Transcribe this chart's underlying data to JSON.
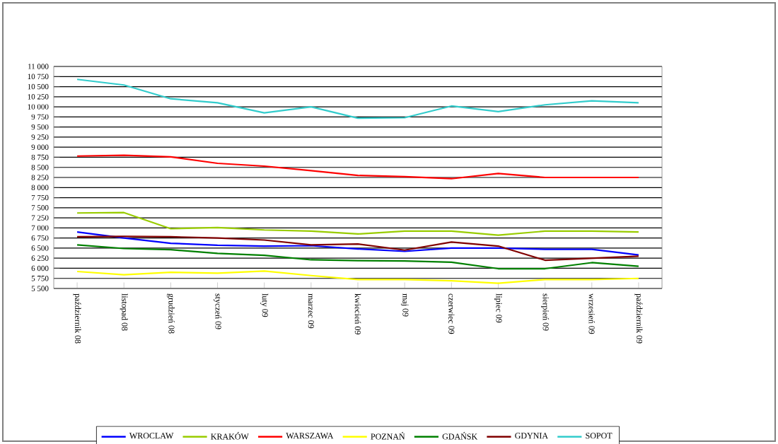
{
  "chart_data": {
    "type": "line",
    "categories": [
      "październik 08",
      "listopad 08",
      "grudzień 08",
      "styczeń 09",
      "luty 09",
      "marzec 09",
      "kwiecień 09",
      "maj 09",
      "czerwiec 09",
      "lipiec 09",
      "sierpień 09",
      "wrzesień 09",
      "październik 09"
    ],
    "series": [
      {
        "name": "WROCLAW",
        "color": "#0000ff",
        "values": [
          6900,
          6750,
          6620,
          6570,
          6550,
          6560,
          6480,
          6420,
          6500,
          6500,
          6470,
          6470,
          6330
        ]
      },
      {
        "name": "KRAKÓW",
        "color": "#99cc00",
        "values": [
          7370,
          7380,
          6980,
          7010,
          6950,
          6920,
          6850,
          6920,
          6920,
          6820,
          6920,
          6920,
          6900
        ]
      },
      {
        "name": "WARSZAWA",
        "color": "#ff0000",
        "values": [
          8780,
          8800,
          8760,
          8600,
          8530,
          8420,
          8300,
          8270,
          8220,
          8350,
          8250,
          8250,
          8250
        ]
      },
      {
        "name": "POZNAŃ",
        "color": "#ffff00",
        "values": [
          5920,
          5840,
          5900,
          5880,
          5930,
          5820,
          5720,
          5720,
          5690,
          5630,
          5720,
          5720,
          5750
        ]
      },
      {
        "name": "GDAŃSK",
        "color": "#008000",
        "values": [
          6580,
          6490,
          6460,
          6370,
          6320,
          6210,
          6190,
          6180,
          6150,
          5990,
          5990,
          6140,
          6050
        ]
      },
      {
        "name": "GDYNIA",
        "color": "#800000",
        "values": [
          6780,
          6790,
          6780,
          6750,
          6700,
          6580,
          6600,
          6450,
          6650,
          6550,
          6200,
          6250,
          6300
        ]
      },
      {
        "name": "SOPOT",
        "color": "#33cccc",
        "values": [
          10680,
          10540,
          10200,
          10100,
          9850,
          10000,
          9720,
          9730,
          10020,
          9880,
          10050,
          10150,
          10100
        ]
      }
    ],
    "ylim": [
      5500,
      11000
    ],
    "yticks": [
      {
        "value": 5500,
        "label": "5 500"
      },
      {
        "value": 5750,
        "label": "5 750"
      },
      {
        "value": 6000,
        "label": "6 000"
      },
      {
        "value": 6250,
        "label": "6 250"
      },
      {
        "value": 6500,
        "label": "6 500"
      },
      {
        "value": 6750,
        "label": "6 750"
      },
      {
        "value": 7000,
        "label": "7 000"
      },
      {
        "value": 7250,
        "label": "7 250"
      },
      {
        "value": 7500,
        "label": "7 500"
      },
      {
        "value": 7750,
        "label": "7 750"
      },
      {
        "value": 8000,
        "label": "8 000"
      },
      {
        "value": 8250,
        "label": "8 250"
      },
      {
        "value": 8500,
        "label": "8 500"
      },
      {
        "value": 8750,
        "label": "8 750"
      },
      {
        "value": 9000,
        "label": "9 000"
      },
      {
        "value": 9250,
        "label": "9 250"
      },
      {
        "value": 9500,
        "label": "9 500"
      },
      {
        "value": 9750,
        "label": "9 750"
      },
      {
        "value": 10000,
        "label": "10 000"
      },
      {
        "value": 10250,
        "label": "10 250"
      },
      {
        "value": 10500,
        "label": "10 500"
      },
      {
        "value": 10750,
        "label": "10 750"
      },
      {
        "value": 11000,
        "label": "11 000"
      }
    ],
    "grid": "y",
    "legend": "bottom",
    "marker": "none",
    "line_style": "solid"
  }
}
